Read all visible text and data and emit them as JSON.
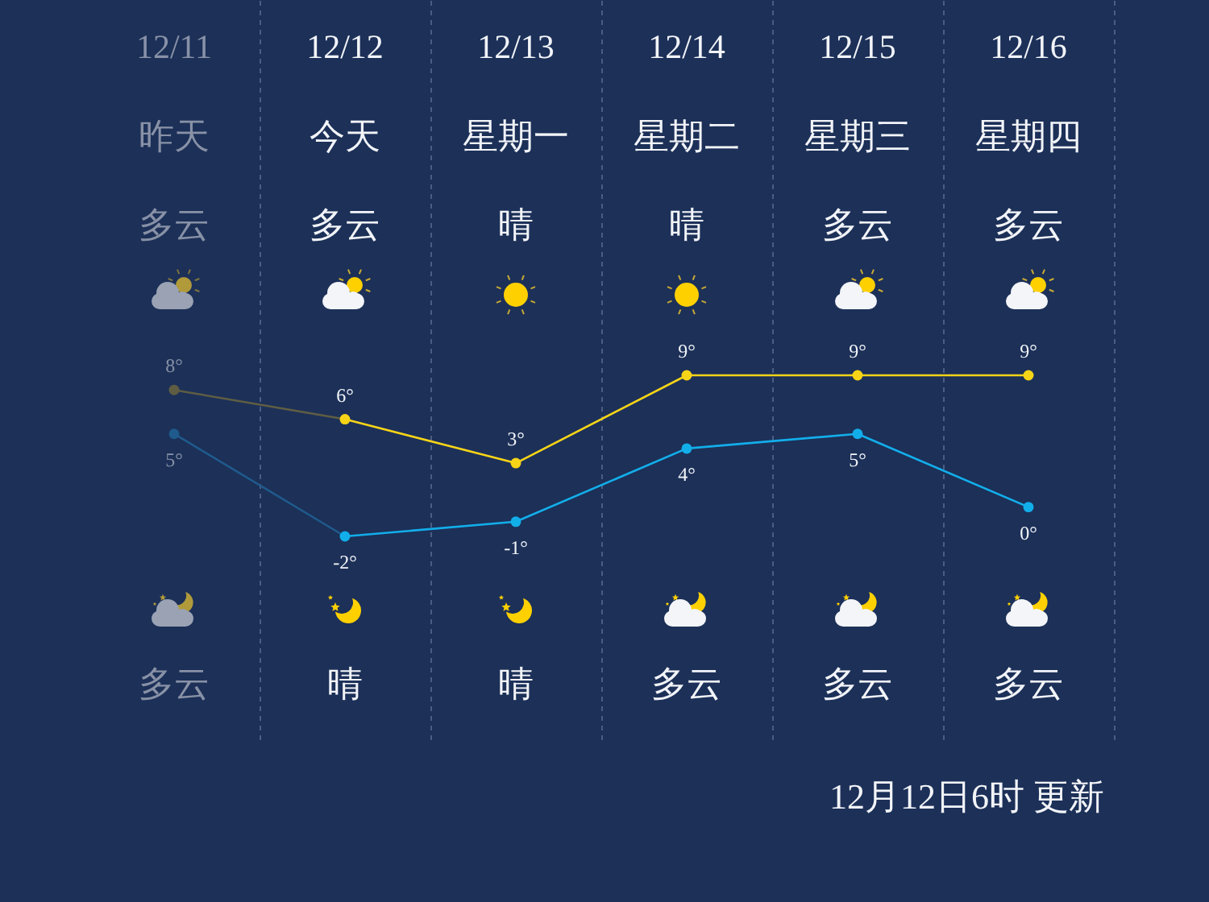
{
  "chart_data": {
    "type": "line",
    "categories": [
      "12/11",
      "12/12",
      "12/13",
      "12/14",
      "12/15",
      "12/16"
    ],
    "series": [
      {
        "color": "#f7d417",
        "colors": [
          "#5e5d43",
          "#f7d417",
          "#f7d417",
          "#f7d417",
          "#f7d417",
          "#f7d417"
        ],
        "values": [
          8,
          6,
          3,
          9,
          9,
          9
        ],
        "value_labels": [
          "8°",
          "6°",
          "3°",
          "9°",
          "9°",
          "9°"
        ]
      },
      {
        "color": "#12aeea",
        "colors": [
          "#1f5a8c",
          "#12aeea",
          "#12aeea",
          "#12aeea",
          "#12aeea",
          "#12aeea"
        ],
        "values": [
          5,
          -2,
          -1,
          4,
          5,
          0
        ],
        "value_labels": [
          "5°",
          "-2°",
          "-1°",
          "4°",
          "5°",
          "0°"
        ]
      }
    ],
    "grid": "x",
    "marker": "circle",
    "annotations": [
      "昨天",
      "今天",
      "星期一",
      "星期二",
      "星期三",
      "星期四",
      "多云",
      "多云",
      "晴",
      "晴",
      "多云",
      "多云",
      "多云",
      "晴",
      "晴",
      "多云",
      "多云",
      "多云",
      "12月12日6时 更新"
    ]
  }
}
